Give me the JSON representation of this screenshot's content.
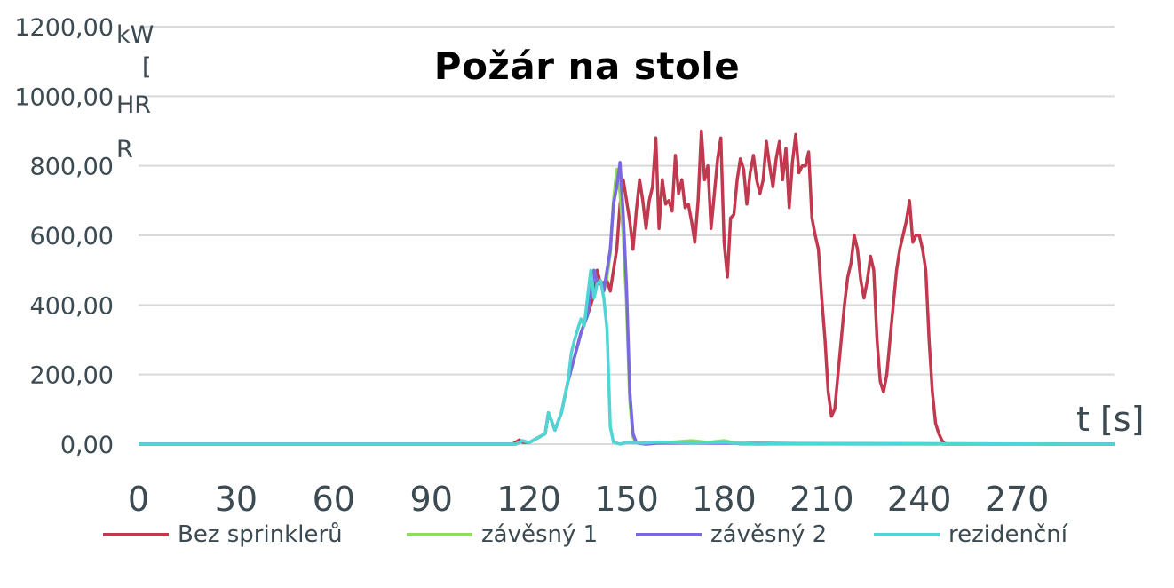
{
  "chart_data": {
    "type": "line",
    "title": "Požár na stole",
    "ylabel_parts": [
      "kW",
      "[",
      "HR",
      "R"
    ],
    "xlabel": "t [s]",
    "ylim": [
      0,
      1200
    ],
    "xlim": [
      0,
      300
    ],
    "yticks": [
      "0,00",
      "200,00",
      "400,00",
      "600,00",
      "800,00",
      "1000,00",
      "1200,00"
    ],
    "xticks": [
      "0",
      "30",
      "60",
      "90",
      "120",
      "150",
      "180",
      "210",
      "240",
      "270"
    ],
    "grid": true,
    "legend_position": "bottom",
    "series": [
      {
        "name": "Bez sprinklerů",
        "color": "#c0394f",
        "x": [
          0,
          115,
          117,
          118,
          120,
          125,
          126,
          128,
          130,
          132,
          134,
          136,
          138,
          140,
          141,
          142,
          144,
          145,
          146,
          147,
          148,
          149,
          150,
          151,
          152,
          153,
          154,
          155,
          156,
          157,
          158,
          159,
          160,
          161,
          162,
          163,
          164,
          165,
          166,
          167,
          168,
          169,
          170,
          171,
          172,
          173,
          174,
          175,
          176,
          177,
          178,
          179,
          180,
          181,
          182,
          183,
          184,
          185,
          186,
          187,
          188,
          189,
          190,
          191,
          192,
          193,
          194,
          195,
          196,
          197,
          198,
          199,
          200,
          201,
          202,
          203,
          204,
          205,
          206,
          207,
          208,
          209,
          210,
          211,
          212,
          213,
          214,
          215,
          216,
          217,
          218,
          219,
          220,
          221,
          222,
          223,
          224,
          225,
          226,
          227,
          228,
          229,
          230,
          231,
          232,
          233,
          234,
          235,
          236,
          237,
          238,
          239,
          240,
          241,
          242,
          243,
          244,
          245,
          246,
          247,
          248,
          249,
          250,
          251,
          252,
          253,
          254,
          256,
          260,
          270,
          300
        ],
        "y": [
          0,
          0,
          12,
          5,
          4,
          30,
          90,
          40,
          90,
          180,
          250,
          320,
          370,
          430,
          500,
          460,
          470,
          440,
          500,
          560,
          690,
          760,
          700,
          640,
          560,
          670,
          760,
          700,
          620,
          700,
          740,
          880,
          620,
          760,
          690,
          700,
          670,
          830,
          720,
          760,
          680,
          690,
          640,
          580,
          700,
          900,
          760,
          800,
          620,
          720,
          820,
          880,
          580,
          480,
          650,
          660,
          760,
          820,
          790,
          690,
          780,
          830,
          760,
          720,
          760,
          870,
          800,
          740,
          820,
          870,
          760,
          850,
          680,
          810,
          890,
          780,
          800,
          800,
          840,
          650,
          600,
          560,
          420,
          300,
          150,
          80,
          100,
          200,
          300,
          400,
          480,
          520,
          600,
          560,
          470,
          420,
          470,
          540,
          500,
          300,
          180,
          150,
          200,
          300,
          400,
          500,
          560,
          600,
          640,
          700,
          580,
          600,
          600,
          560,
          500,
          300,
          150,
          60,
          30,
          10,
          0,
          0,
          0,
          0,
          0,
          0,
          0,
          0,
          0,
          0,
          0
        ]
      },
      {
        "name": "závěsný 1",
        "color": "#8fdc5a",
        "x": [
          0,
          116,
          118,
          120,
          125,
          126,
          128,
          130,
          132,
          134,
          136,
          138,
          139,
          140,
          141,
          142,
          143,
          144,
          145,
          146,
          147,
          148,
          149,
          150,
          151,
          152,
          153,
          154,
          156,
          160,
          170,
          175,
          180,
          185,
          190,
          200,
          300
        ],
        "y": [
          0,
          0,
          10,
          4,
          30,
          90,
          40,
          90,
          180,
          250,
          320,
          370,
          430,
          500,
          460,
          470,
          440,
          480,
          550,
          700,
          790,
          720,
          600,
          400,
          120,
          20,
          5,
          4,
          0,
          3,
          10,
          5,
          10,
          0,
          0,
          0,
          0
        ]
      },
      {
        "name": "závěsný 2",
        "color": "#7b68e0",
        "x": [
          0,
          116,
          118,
          120,
          125,
          126,
          128,
          130,
          132,
          134,
          136,
          138,
          139,
          140,
          141,
          142,
          143,
          144,
          145,
          146,
          147,
          148,
          149,
          150,
          151,
          152,
          153,
          154,
          156,
          160,
          300
        ],
        "y": [
          0,
          0,
          10,
          4,
          30,
          90,
          40,
          90,
          180,
          250,
          320,
          370,
          430,
          500,
          460,
          470,
          440,
          500,
          560,
          690,
          740,
          810,
          660,
          450,
          150,
          30,
          5,
          2,
          0,
          3,
          0
        ]
      },
      {
        "name": "rezidenční",
        "color": "#4fd6d4",
        "x": [
          0,
          116,
          118,
          120,
          125,
          126,
          128,
          130,
          132,
          133,
          134,
          135,
          136,
          137,
          138,
          139,
          140,
          141,
          142,
          143,
          144,
          145,
          146,
          147,
          148,
          150,
          155,
          160,
          170,
          180,
          190,
          200,
          300
        ],
        "y": [
          0,
          0,
          10,
          4,
          30,
          90,
          40,
          90,
          180,
          260,
          300,
          330,
          360,
          340,
          420,
          500,
          420,
          460,
          470,
          420,
          330,
          50,
          5,
          3,
          0,
          5,
          3,
          6,
          3,
          5,
          0,
          2,
          0
        ]
      }
    ]
  }
}
